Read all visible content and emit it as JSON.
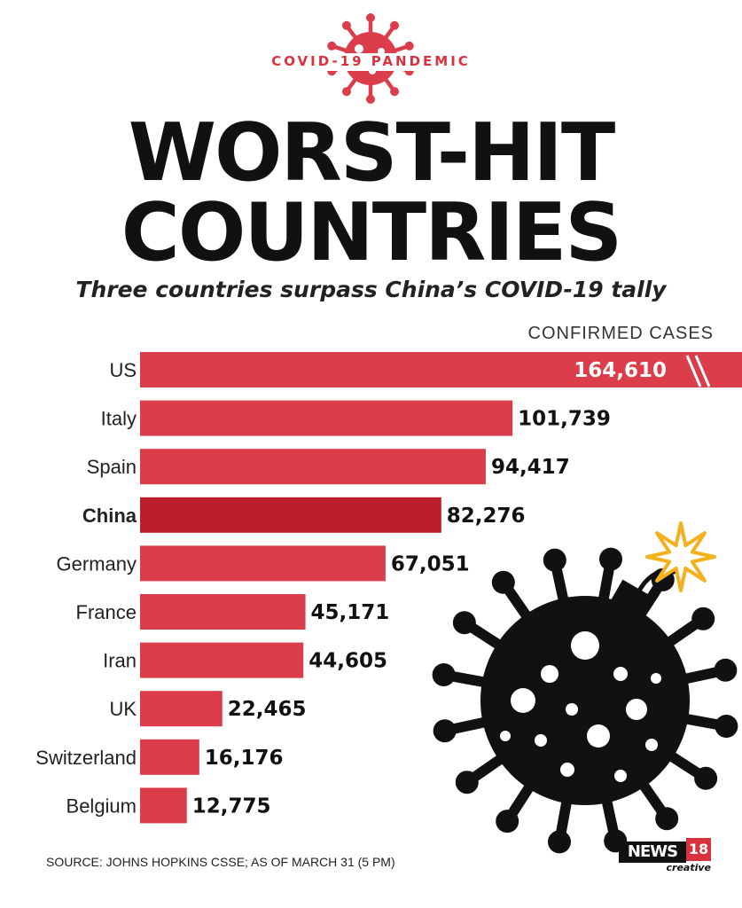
{
  "header": {
    "kicker": "COVID-19 PANDEMIC",
    "title_line1": "WORST-HIT",
    "title_line2": "COUNTRIES",
    "subtitle": "Three countries surpass China’s COVID-19 tally"
  },
  "chart_data": {
    "type": "bar",
    "orientation": "horizontal",
    "value_label": "CONFIRMED CASES",
    "categories": [
      "US",
      "Italy",
      "Spain",
      "China",
      "Germany",
      "France",
      "Iran",
      "UK",
      "Switzerland",
      "Belgium"
    ],
    "values": [
      164610,
      101739,
      94417,
      82276,
      67051,
      45171,
      44605,
      22465,
      16176,
      12775
    ],
    "value_labels": [
      "164,610",
      "101,739",
      "94,417",
      "82,276",
      "67,051",
      "45,171",
      "44,605",
      "22,465",
      "16,176",
      "12,775"
    ],
    "highlight": "China",
    "truncated": [
      "US"
    ],
    "colors": {
      "bar": "#dc3d4b",
      "highlight": "#bc1e2e",
      "text": "#111111"
    }
  },
  "footer": {
    "source": "SOURCE: JOHNS HOPKINS CSSE; AS OF MARCH 31 (5 PM)",
    "logo_main": "NEWS",
    "logo_number": "18",
    "logo_sub": "creative"
  },
  "decorations": {
    "top_icon": "virus-icon",
    "bottom_icon": "virus-bomb-icon",
    "accent": "#d9323f",
    "spark": "#f3b21b"
  }
}
